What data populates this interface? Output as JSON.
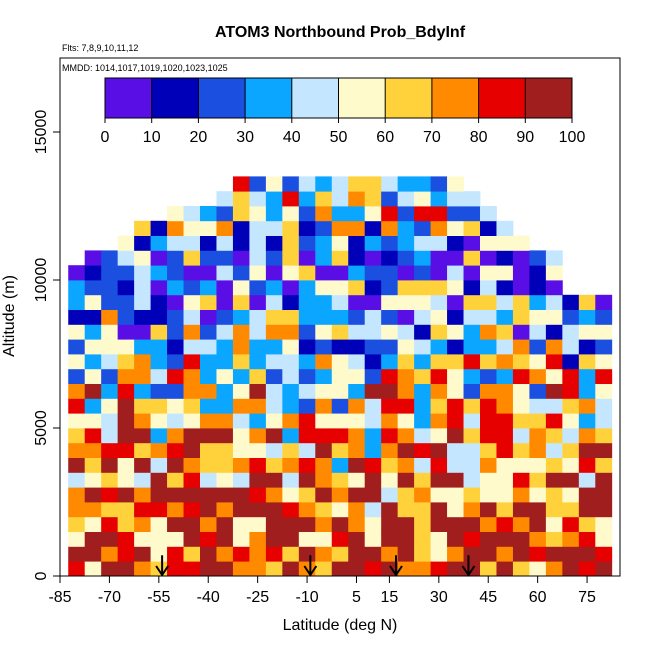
{
  "chart_data": {
    "type": "heatmap",
    "title": "ATOM3 Northbound Prob_BdyInf",
    "flights_note": "Flts: 7,8,9,10,11,12",
    "dates_note": "MMDD: 1014,1017,1019,1020,1023,1025",
    "xlabel": "Latitude (deg N)",
    "ylabel": "Altitude (m)",
    "xlim": [
      -85,
      85
    ],
    "ylim": [
      0,
      17500
    ],
    "x_ticks": [
      -85,
      -70,
      -55,
      -40,
      -25,
      -10,
      5,
      15,
      30,
      45,
      60,
      75
    ],
    "y_ticks": [
      0,
      5000,
      10000,
      15000
    ],
    "colorbar": {
      "min": 0,
      "max": 100,
      "ticks": [
        0,
        10,
        20,
        30,
        40,
        50,
        60,
        70,
        80,
        90,
        100
      ],
      "colors": [
        "#5a0ee6",
        "#0000b8",
        "#1a4fe0",
        "#0aa6ff",
        "#c4e6ff",
        "#fffacc",
        "#ffd23c",
        "#ff8a00",
        "#e60000",
        "#a01e1e"
      ]
    },
    "arrow_latitudes": [
      -54,
      -9,
      17,
      39
    ],
    "column_tops_m": [
      [
        -80,
        10500
      ],
      [
        -75,
        10700
      ],
      [
        -70,
        10900
      ],
      [
        -65,
        11200
      ],
      [
        -60,
        11800
      ],
      [
        -55,
        12000
      ],
      [
        -50,
        12300
      ],
      [
        -45,
        12300
      ],
      [
        -40,
        12400
      ],
      [
        -35,
        12800
      ],
      [
        -30,
        13200
      ],
      [
        -25,
        13200
      ],
      [
        -20,
        13200
      ],
      [
        -15,
        13200
      ],
      [
        -10,
        13500
      ],
      [
        -5,
        13200
      ],
      [
        0,
        13200
      ],
      [
        5,
        13200
      ],
      [
        10,
        13200
      ],
      [
        15,
        13200
      ],
      [
        20,
        13200
      ],
      [
        25,
        13200
      ],
      [
        30,
        13200
      ],
      [
        35,
        13200
      ],
      [
        40,
        12800
      ],
      [
        45,
        12400
      ],
      [
        50,
        11600
      ],
      [
        55,
        11300
      ],
      [
        60,
        11000
      ],
      [
        65,
        10900
      ],
      [
        70,
        9500
      ],
      [
        75,
        9500
      ],
      [
        80,
        9500
      ]
    ],
    "altitude_profile": [
      {
        "altitude_m": 500,
        "value": 90
      },
      {
        "altitude_m": 2500,
        "value": 80
      },
      {
        "altitude_m": 4500,
        "value": 70
      },
      {
        "altitude_m": 6500,
        "value": 58
      },
      {
        "altitude_m": 8500,
        "value": 40
      },
      {
        "altitude_m": 10500,
        "value": 28
      },
      {
        "altitude_m": 12500,
        "value": 55
      }
    ]
  }
}
